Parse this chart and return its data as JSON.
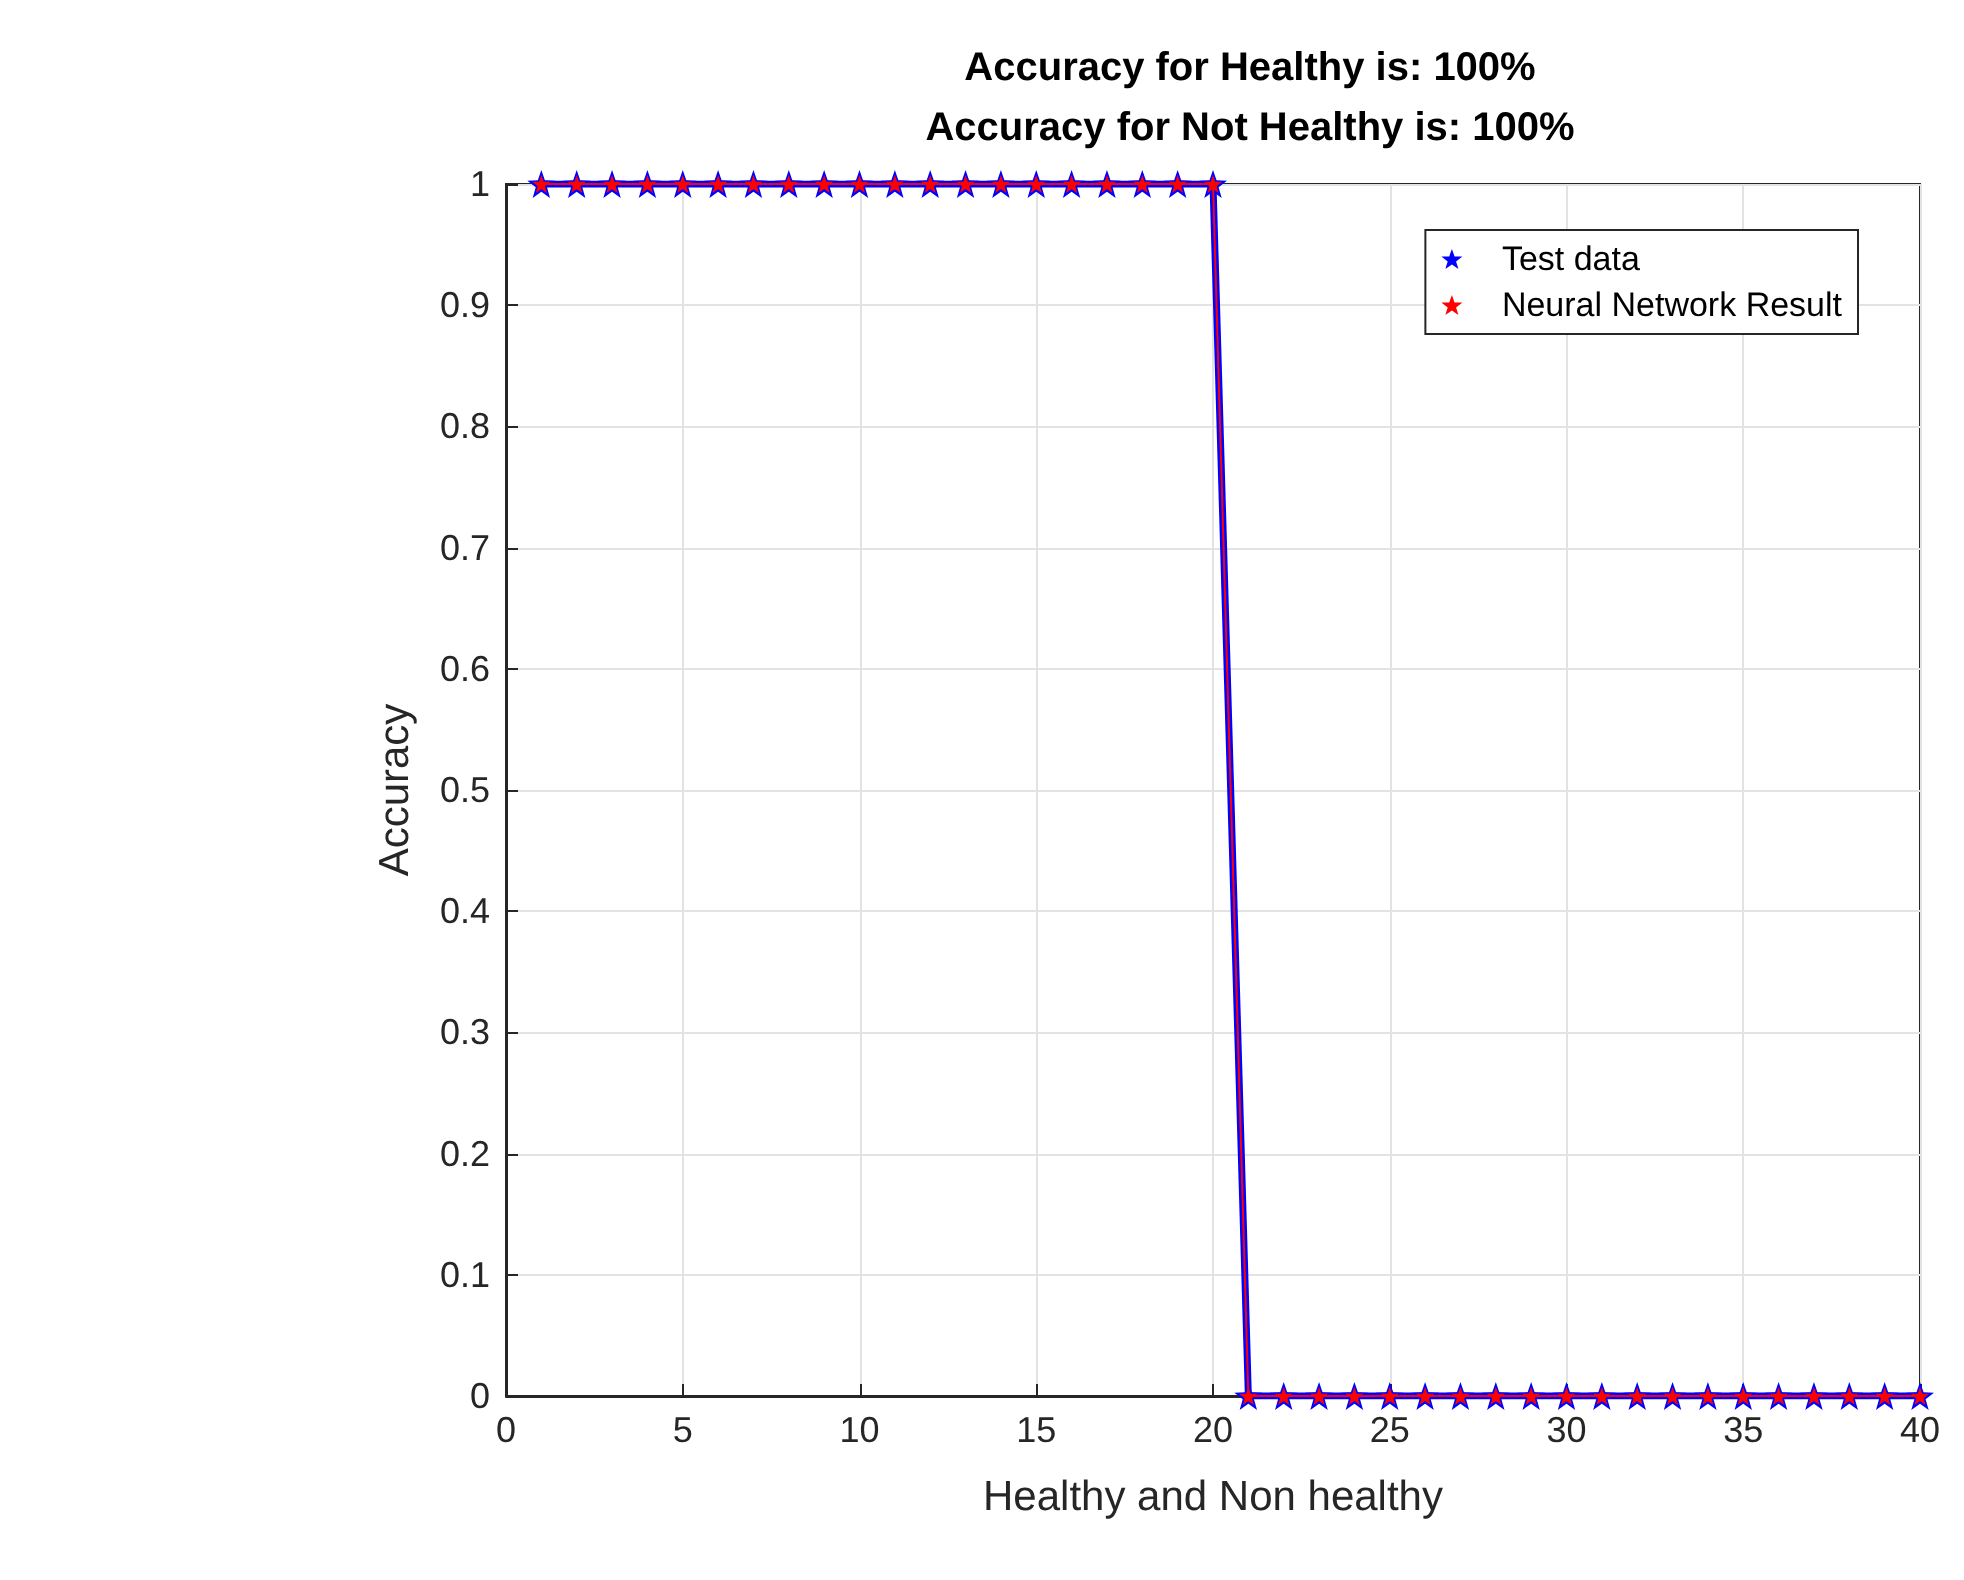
{
  "chart_data": {
    "type": "line",
    "title": "Accuracy for Healthy is: 100%\nAccuracy for Not Healthy is: 100%",
    "xlabel": "Healthy and Non healthy",
    "ylabel": "Accuracy",
    "x": [
      1,
      2,
      3,
      4,
      5,
      6,
      7,
      8,
      9,
      10,
      11,
      12,
      13,
      14,
      15,
      16,
      17,
      18,
      19,
      20,
      21,
      22,
      23,
      24,
      25,
      26,
      27,
      28,
      29,
      30,
      31,
      32,
      33,
      34,
      35,
      36,
      37,
      38,
      39,
      40
    ],
    "series": [
      {
        "name": "Test data",
        "color": "#0000ff",
        "values": [
          1,
          1,
          1,
          1,
          1,
          1,
          1,
          1,
          1,
          1,
          1,
          1,
          1,
          1,
          1,
          1,
          1,
          1,
          1,
          1,
          0,
          0,
          0,
          0,
          0,
          0,
          0,
          0,
          0,
          0,
          0,
          0,
          0,
          0,
          0,
          0,
          0,
          0,
          0,
          0
        ]
      },
      {
        "name": "Neural Network Result",
        "color": "#ff0000",
        "values": [
          1,
          1,
          1,
          1,
          1,
          1,
          1,
          1,
          1,
          1,
          1,
          1,
          1,
          1,
          1,
          1,
          1,
          1,
          1,
          1,
          0,
          0,
          0,
          0,
          0,
          0,
          0,
          0,
          0,
          0,
          0,
          0,
          0,
          0,
          0,
          0,
          0,
          0,
          0,
          0
        ]
      }
    ],
    "xlim": [
      0,
      40
    ],
    "xticks": [
      0,
      5,
      10,
      15,
      20,
      25,
      30,
      35,
      40
    ],
    "ylim": [
      0,
      1
    ],
    "yticks": [
      0,
      0.1,
      0.2,
      0.3,
      0.4,
      0.5,
      0.6,
      0.7,
      0.8,
      0.9,
      1
    ],
    "grid": true,
    "legend": "top right",
    "marker": "star",
    "line_style": "solid"
  }
}
